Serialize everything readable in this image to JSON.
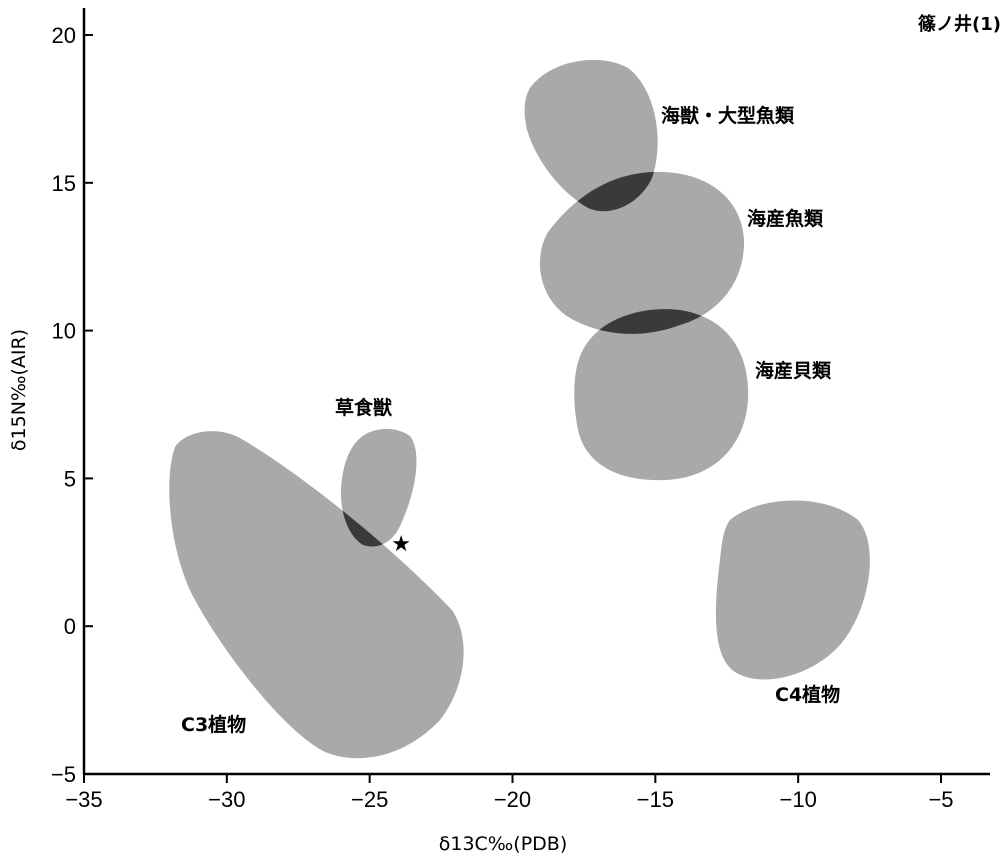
{
  "chart_data": {
    "type": "scatter",
    "title": "",
    "corner_label": "篠ノ井(1)",
    "xlabel": "δ13C‰(PDB)",
    "ylabel": "δ15N‰(AIR)",
    "xlim": [
      -35,
      -3
    ],
    "ylim": [
      -5,
      21
    ],
    "x_ticks": [
      -35,
      -30,
      -25,
      -20,
      -15,
      -10,
      -5
    ],
    "y_ticks": [
      -5,
      0,
      5,
      10,
      15,
      20
    ],
    "grid": false,
    "colors": {
      "region_fill": "#a9a9a9",
      "overlap_fill": "#3a3a3a",
      "axis": "#000000"
    },
    "regions": [
      {
        "name": "C3植物",
        "x_range": [
          -32.2,
          -22.1
        ],
        "y_range": [
          -4.7,
          6.6
        ]
      },
      {
        "name": "草食獣",
        "x_range": [
          -25.4,
          -22.5
        ],
        "y_range": [
          2.6,
          6.6
        ]
      },
      {
        "name": "海獣・大型魚類",
        "x_range": [
          -18.0,
          -13.4
        ],
        "y_range": [
          14.1,
          19.5
        ]
      },
      {
        "name": "海産魚類",
        "x_range": [
          -18.3,
          -11.0
        ],
        "y_range": [
          9.9,
          15.3
        ]
      },
      {
        "name": "海産貝類",
        "x_range": [
          -17.8,
          -11.9
        ],
        "y_range": [
          4.8,
          10.8
        ]
      },
      {
        "name": "C4植物",
        "x_range": [
          -11.3,
          -6.2
        ],
        "y_range": [
          -1.7,
          4.2
        ]
      }
    ],
    "points": [
      {
        "label": "★",
        "x": -23.9,
        "y": 2.8
      }
    ]
  }
}
